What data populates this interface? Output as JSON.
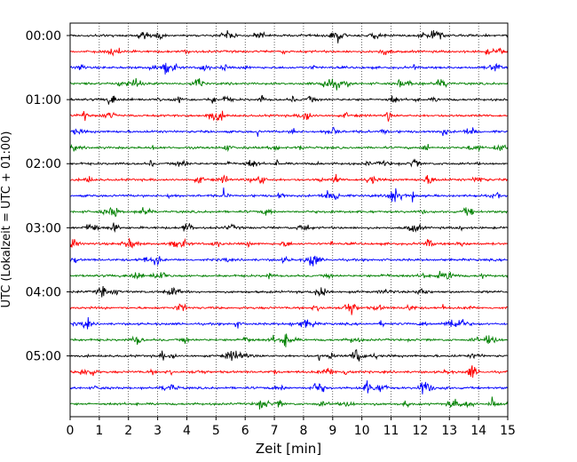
{
  "chart_data": {
    "type": "line",
    "title": "",
    "xlabel": "Zeit  [min]",
    "ylabel": "UTC (Lokalzeit = UTC + 01:00)",
    "xlim": [
      0,
      15
    ],
    "xticks": [
      0,
      1,
      2,
      3,
      4,
      5,
      6,
      7,
      8,
      9,
      10,
      11,
      12,
      13,
      14,
      15
    ],
    "x_grid": true,
    "y_tick_labels": [
      "00:00",
      "01:00",
      "02:00",
      "03:00",
      "04:00",
      "05:00"
    ],
    "y_tick_label_rows": [
      0,
      4,
      8,
      12,
      16,
      20
    ],
    "trace_count": 24,
    "minutes_per_trace": 15,
    "trace_colors": [
      "#000000",
      "#ff0000",
      "#0000ff",
      "#008000"
    ]
  }
}
